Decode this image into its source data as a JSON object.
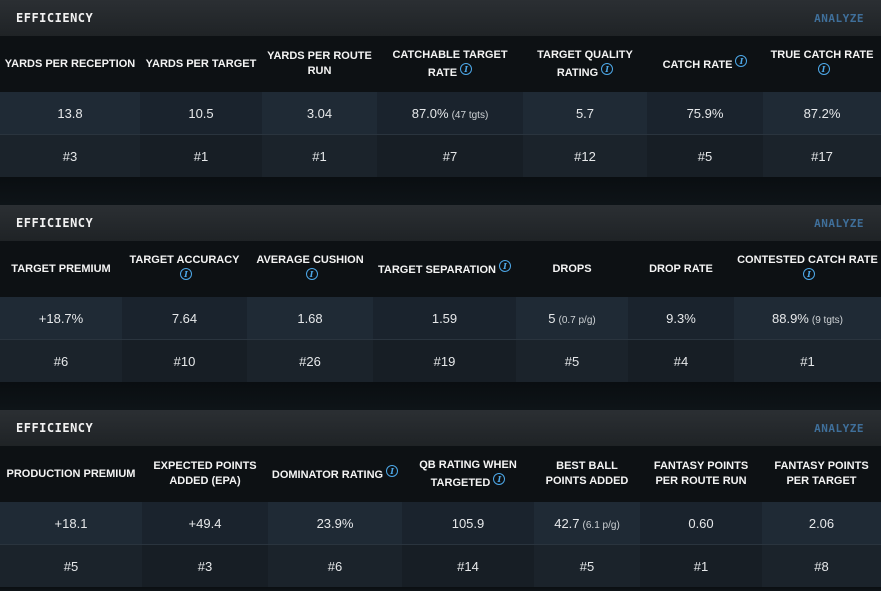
{
  "panels": [
    {
      "title": "EFFICIENCY",
      "action": "ANALYZE",
      "columns": [
        {
          "label": "YARDS PER RECEPTION",
          "value": "13.8",
          "sub": "",
          "rank": "#3",
          "info": false
        },
        {
          "label": "YARDS PER TARGET",
          "value": "10.5",
          "sub": "",
          "rank": "#1",
          "info": false
        },
        {
          "label": "YARDS PER ROUTE RUN",
          "value": "3.04",
          "sub": "",
          "rank": "#1",
          "info": false
        },
        {
          "label": "CATCHABLE TARGET RATE",
          "value": "87.0%",
          "sub": "(47 tgts)",
          "rank": "#7",
          "info": true
        },
        {
          "label": "TARGET QUALITY RATING",
          "value": "5.7",
          "sub": "",
          "rank": "#12",
          "info": true
        },
        {
          "label": "CATCH RATE",
          "value": "75.9%",
          "sub": "",
          "rank": "#5",
          "info": true
        },
        {
          "label": "TRUE CATCH RATE",
          "value": "87.2%",
          "sub": "",
          "rank": "#17",
          "info": true
        }
      ]
    },
    {
      "title": "EFFICIENCY",
      "action": "ANALYZE",
      "columns": [
        {
          "label": "TARGET PREMIUM",
          "value": "+18.7%",
          "sub": "",
          "rank": "#6",
          "info": false
        },
        {
          "label": "TARGET ACCURACY",
          "value": "7.64",
          "sub": "",
          "rank": "#10",
          "info": true
        },
        {
          "label": "AVERAGE CUSHION",
          "value": "1.68",
          "sub": "",
          "rank": "#26",
          "info": true
        },
        {
          "label": "TARGET SEPARATION",
          "value": "1.59",
          "sub": "",
          "rank": "#19",
          "info": true
        },
        {
          "label": "DROPS",
          "value": "5",
          "sub": "(0.7 p/g)",
          "rank": "#5",
          "info": false
        },
        {
          "label": "DROP RATE",
          "value": "9.3%",
          "sub": "",
          "rank": "#4",
          "info": false
        },
        {
          "label": "CONTESTED CATCH RATE",
          "value": "88.9%",
          "sub": "(9 tgts)",
          "rank": "#1",
          "info": true
        }
      ]
    },
    {
      "title": "EFFICIENCY",
      "action": "ANALYZE",
      "columns": [
        {
          "label": "PRODUCTION PREMIUM",
          "value": "+18.1",
          "sub": "",
          "rank": "#5",
          "info": false
        },
        {
          "label": "EXPECTED POINTS ADDED (EPA)",
          "value": "+49.4",
          "sub": "",
          "rank": "#3",
          "info": false
        },
        {
          "label": "DOMINATOR RATING",
          "value": "23.9%",
          "sub": "",
          "rank": "#6",
          "info": true
        },
        {
          "label": "QB RATING WHEN TARGETED",
          "value": "105.9",
          "sub": "",
          "rank": "#14",
          "info": true
        },
        {
          "label": "BEST BALL POINTS ADDED",
          "value": "42.7",
          "sub": "(6.1 p/g)",
          "rank": "#5",
          "info": false
        },
        {
          "label": "FANTASY POINTS PER ROUTE RUN",
          "value": "0.60",
          "sub": "",
          "rank": "#1",
          "info": false
        },
        {
          "label": "FANTASY POINTS PER TARGET",
          "value": "2.06",
          "sub": "",
          "rank": "#8",
          "info": false
        }
      ]
    }
  ],
  "icons": {
    "info": "info-icon"
  },
  "colors": {
    "accent": "#4da8e8",
    "analyze": "#3f6f9a"
  }
}
